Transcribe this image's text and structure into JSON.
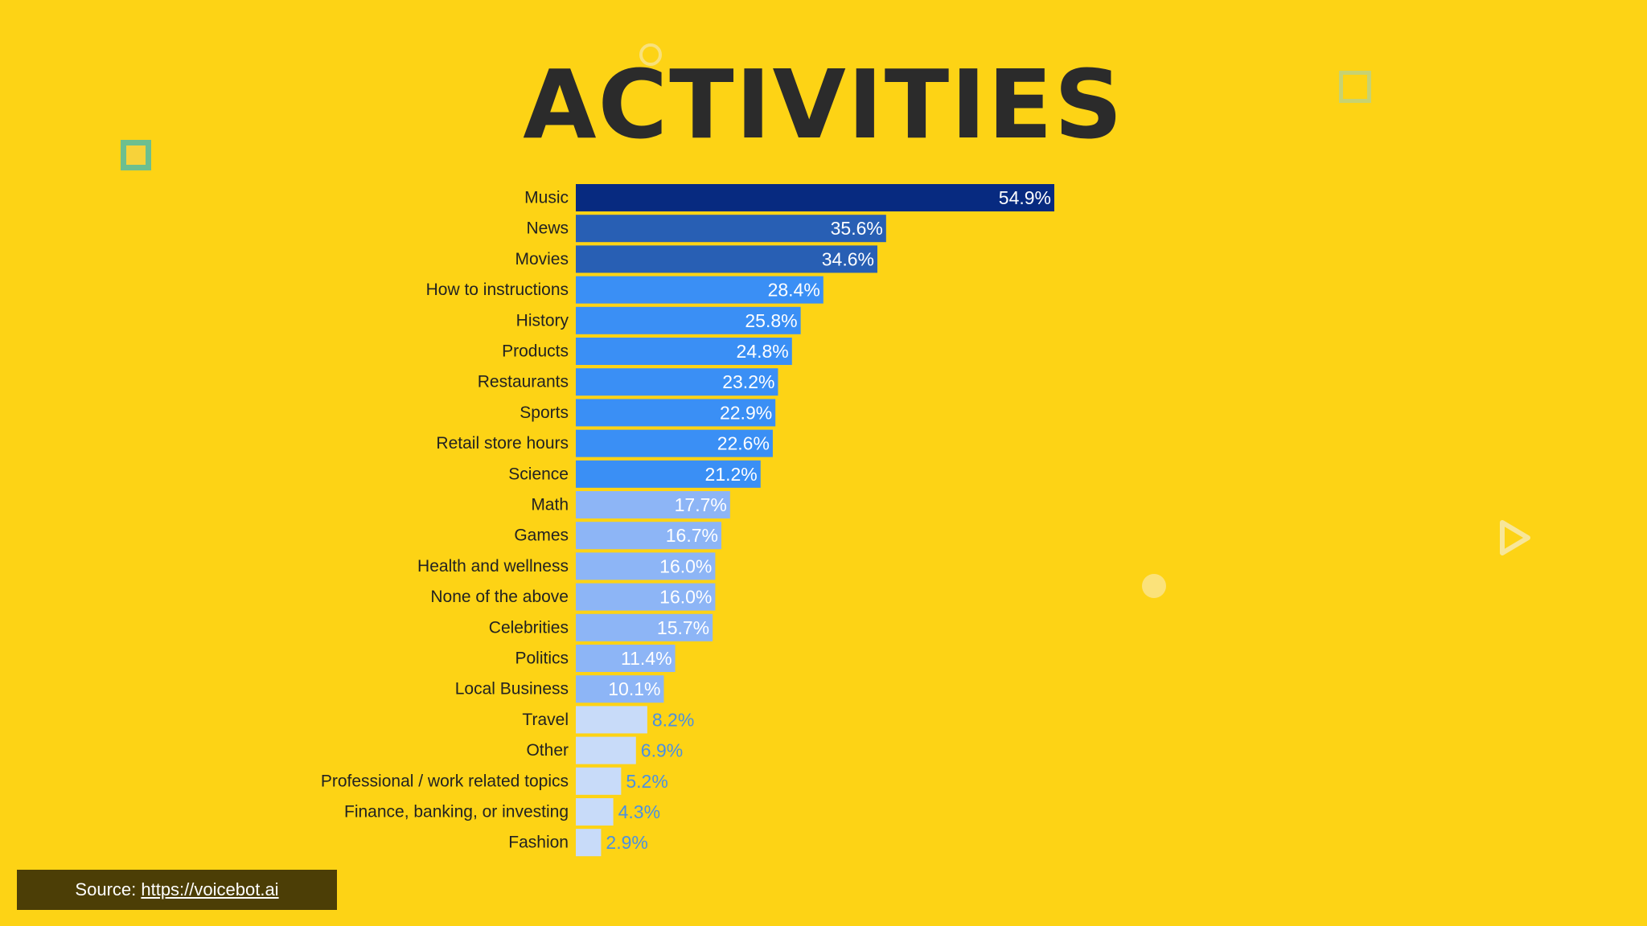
{
  "page": {
    "title": "ACTIVITIES"
  },
  "source": {
    "prefix": "Source: ",
    "link": "https://voicebot.ai"
  },
  "chart_data": {
    "type": "bar",
    "orientation": "horizontal",
    "title": "ACTIVITIES",
    "xlabel": "",
    "ylabel": "",
    "xlim": [
      0,
      54.9
    ],
    "grid": false,
    "categories": [
      "Music",
      "News",
      "Movies",
      "How to instructions",
      "History",
      "Products",
      "Restaurants",
      "Sports",
      "Retail store hours",
      "Science",
      "Math",
      "Games",
      "Health and wellness",
      "None of the above",
      "Celebrities",
      "Politics",
      "Local Business",
      "Travel",
      "Other",
      "Professional / work related topics",
      "Finance, banking, or investing",
      "Fashion"
    ],
    "values": [
      54.9,
      35.6,
      34.6,
      28.4,
      25.8,
      24.8,
      23.2,
      22.9,
      22.6,
      21.2,
      17.7,
      16.7,
      16.0,
      16.0,
      15.7,
      11.4,
      10.1,
      8.2,
      6.9,
      5.2,
      4.3,
      2.9
    ],
    "labels": [
      "54.9%",
      "35.6%",
      "34.6%",
      "28.4%",
      "25.8%",
      "24.8%",
      "23.2%",
      "22.9%",
      "22.6%",
      "21.2%",
      "17.7%",
      "16.7%",
      "16.0%",
      "16.0%",
      "15.7%",
      "11.4%",
      "10.1%",
      "8.2%",
      "6.9%",
      "5.2%",
      "4.3%",
      "2.9%"
    ],
    "tiers": [
      "top",
      "high",
      "high",
      "mid",
      "mid",
      "mid",
      "mid",
      "mid",
      "mid",
      "mid",
      "low",
      "low",
      "low",
      "low",
      "low",
      "low",
      "low",
      "min",
      "min",
      "min",
      "min",
      "min"
    ],
    "colors": {
      "top": "#072a80",
      "high": "#285fb4",
      "mid": "#3a8ff5",
      "low": "#8db5f6",
      "min": "#c8dbf9",
      "label_inside": "#ffffff",
      "label_outside": "#4a90e2"
    }
  }
}
